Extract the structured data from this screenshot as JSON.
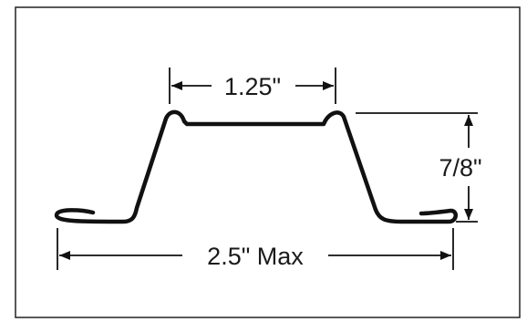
{
  "diagram": {
    "top_width_label": "1.25\"",
    "height_label": "7/8\"",
    "overall_width_label": "2.5\" Max",
    "line_color": "#111111",
    "background_color": "#ffffff"
  }
}
